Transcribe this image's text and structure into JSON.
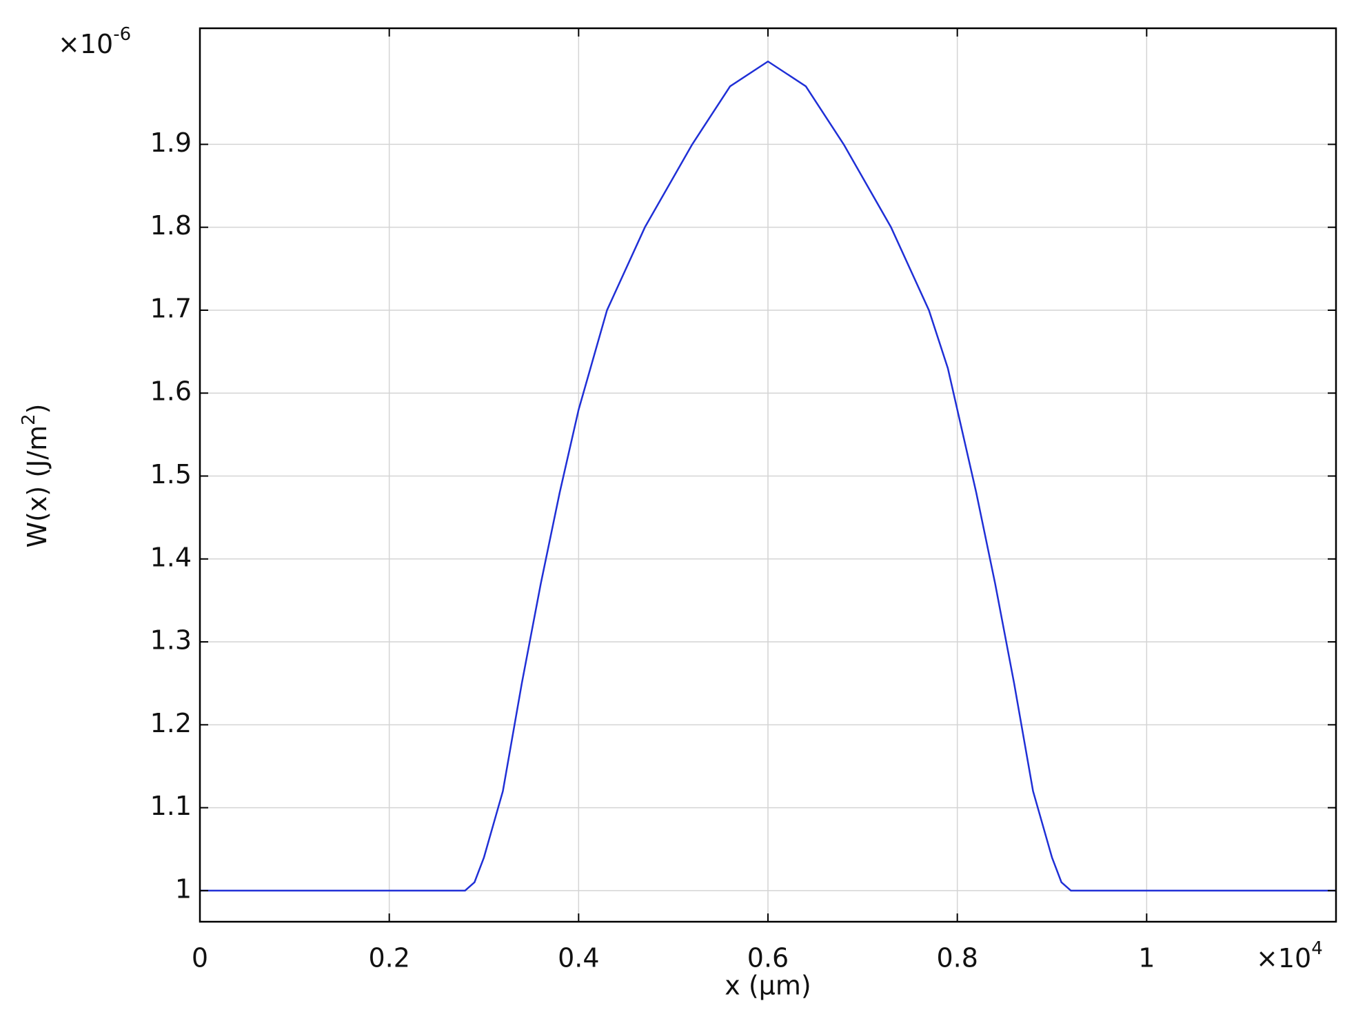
{
  "chart_data": {
    "type": "line",
    "ylabel": "W(x) (J/m",
    "ylabel_superscript": "2",
    "ylabel_end": ")",
    "xlabel": "x  (µm)",
    "y_multiplier": {
      "base": "×10",
      "exponent": "-6"
    },
    "x_multiplier": {
      "base": "×10",
      "exponent": "4"
    },
    "series": [
      {
        "color": "#1f2fd6",
        "x": [
          0,
          0.28,
          0.29,
          0.3,
          0.31,
          0.32,
          0.34,
          0.36,
          0.38,
          0.4,
          0.43,
          0.47,
          0.52,
          0.56,
          0.6,
          0.64,
          0.68,
          0.73,
          0.77,
          0.79,
          0.82,
          0.84,
          0.86,
          0.88,
          0.89,
          0.9,
          0.91,
          0.92,
          1.2
        ],
        "values": [
          1,
          1,
          1.01,
          1.04,
          1.08,
          1.12,
          1.25,
          1.37,
          1.48,
          1.58,
          1.7,
          1.8,
          1.9,
          1.97,
          2.0,
          1.97,
          1.9,
          1.8,
          1.7,
          1.63,
          1.48,
          1.37,
          1.25,
          1.12,
          1.08,
          1.04,
          1.01,
          1,
          1
        ]
      }
    ],
    "xlim": [
      0,
      1.2
    ],
    "xticks": [
      0,
      0.2,
      0.4,
      0.6,
      0.8,
      1
    ],
    "ylim": [
      0.9625,
      2.04
    ],
    "yticks": [
      1,
      1.1,
      1.2,
      1.3,
      1.4,
      1.5,
      1.6,
      1.7,
      1.8,
      1.9
    ],
    "grid": true
  }
}
